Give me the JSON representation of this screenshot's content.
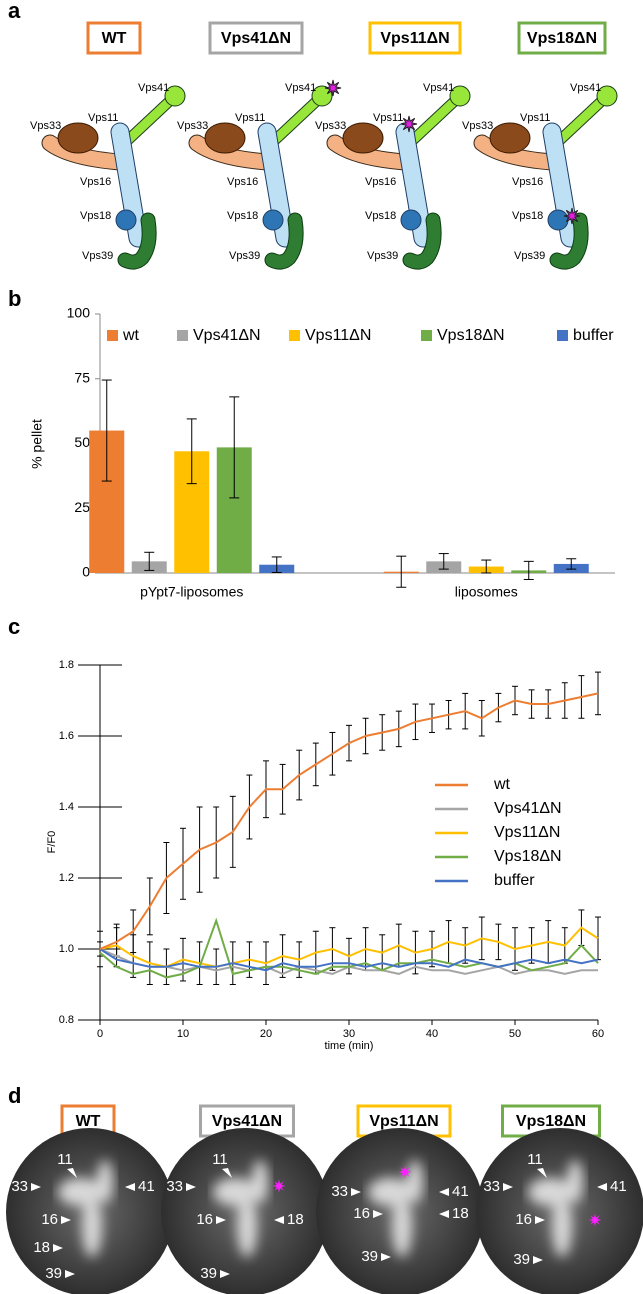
{
  "panel_labels": [
    "a",
    "b",
    "c",
    "d"
  ],
  "diagrams": {
    "titles": [
      "WT",
      "Vps41ΔN",
      "Vps11ΔN",
      "Vps18ΔN"
    ],
    "subunits": [
      "Vps41",
      "Vps11",
      "Vps33",
      "Vps16",
      "Vps18",
      "Vps39"
    ]
  },
  "images": [
    {
      "title": "WT",
      "markers": [
        "11",
        "33",
        "41",
        "16",
        "18",
        "39"
      ]
    },
    {
      "title": "Vps41ΔN",
      "markers": [
        "11",
        "33",
        "16",
        "18",
        "39"
      ]
    },
    {
      "title": "Vps11ΔN",
      "markers": [
        "33",
        "41",
        "16",
        "18",
        "39"
      ]
    },
    {
      "title": "Vps18ΔN",
      "markers": [
        "11",
        "33",
        "41",
        "16",
        "39"
      ]
    }
  ],
  "chart_data": [
    {
      "type": "bar",
      "ylabel": "% pellet",
      "categories": [
        "pYpt7-liposomes",
        "liposomes"
      ],
      "ylim": [
        0,
        100
      ],
      "yticks": [
        0,
        25,
        50,
        75,
        100
      ],
      "series": [
        {
          "name": "wt",
          "color": "#ed7d31",
          "values": [
            55,
            0.5
          ],
          "errors": [
            19.5,
            6
          ]
        },
        {
          "name": "Vps41ΔN",
          "color": "#a5a5a5",
          "values": [
            4.5,
            4.5
          ],
          "errors": [
            3.5,
            3
          ]
        },
        {
          "name": "Vps11ΔN",
          "color": "#ffc000",
          "values": [
            47,
            2.5
          ],
          "errors": [
            12.5,
            2.5
          ]
        },
        {
          "name": "Vps18ΔN",
          "color": "#70ad47",
          "values": [
            48.5,
            1
          ],
          "errors": [
            19.5,
            3.5
          ]
        },
        {
          "name": "buffer",
          "color": "#4472c4",
          "values": [
            3.2,
            3.5
          ],
          "errors": [
            3,
            2
          ]
        }
      ]
    },
    {
      "type": "line",
      "xlabel": "time (min)",
      "ylabel": "F/F0",
      "x": [
        0,
        2,
        4,
        6,
        8,
        10,
        12,
        14,
        16,
        18,
        20,
        22,
        24,
        26,
        28,
        30,
        32,
        34,
        36,
        38,
        40,
        42,
        44,
        46,
        48,
        50,
        52,
        54,
        56,
        58,
        60
      ],
      "xlim": [
        0,
        60
      ],
      "xticks": [
        0,
        10,
        20,
        30,
        40,
        50,
        60
      ],
      "ylim": [
        0.8,
        1.8
      ],
      "yticks": [
        {
          "value": 0.8,
          "label": "0.8"
        },
        {
          "value": 1.0,
          "label": "1.0"
        },
        1.2,
        1.4,
        1.6,
        1.8
      ],
      "series": [
        {
          "name": "wt",
          "color": "#ed7d31",
          "values": [
            1.0,
            1.02,
            1.05,
            1.12,
            1.2,
            1.24,
            1.28,
            1.3,
            1.33,
            1.4,
            1.45,
            1.45,
            1.49,
            1.52,
            1.55,
            1.58,
            1.6,
            1.61,
            1.62,
            1.64,
            1.65,
            1.66,
            1.67,
            1.65,
            1.68,
            1.7,
            1.69,
            1.69,
            1.7,
            1.71,
            1.72
          ],
          "errors": [
            0.02,
            0.04,
            0.06,
            0.08,
            0.1,
            0.1,
            0.12,
            0.1,
            0.1,
            0.09,
            0.08,
            0.07,
            0.07,
            0.06,
            0.06,
            0.05,
            0.05,
            0.05,
            0.05,
            0.05,
            0.04,
            0.04,
            0.05,
            0.05,
            0.04,
            0.04,
            0.04,
            0.04,
            0.05,
            0.06,
            0.06
          ]
        },
        {
          "name": "Vps41ΔN",
          "color": "#a5a5a5",
          "values": [
            1.0,
            0.98,
            0.96,
            0.95,
            0.95,
            0.94,
            0.95,
            0.94,
            0.95,
            0.94,
            0.95,
            0.93,
            0.95,
            0.94,
            0.93,
            0.95,
            0.94,
            0.94,
            0.93,
            0.95,
            0.94,
            0.94,
            0.93,
            0.94,
            0.95,
            0.93,
            0.94,
            0.94,
            0.93,
            0.94,
            0.94
          ]
        },
        {
          "name": "Vps11ΔN",
          "color": "#ffc000",
          "values": [
            1.0,
            1.01,
            0.98,
            0.96,
            0.95,
            0.97,
            0.96,
            0.95,
            0.96,
            0.97,
            0.96,
            0.98,
            0.97,
            0.99,
            1.0,
            0.98,
            1.0,
            0.99,
            1.01,
            0.99,
            1.0,
            1.02,
            1.01,
            1.03,
            1.02,
            1.0,
            1.01,
            1.02,
            1.01,
            1.06,
            1.03
          ],
          "errors": [
            0.05,
            0.06,
            0.06,
            0.06,
            0.05,
            0.06,
            0.06,
            0.05,
            0.06,
            0.05,
            0.06,
            0.06,
            0.05,
            0.06,
            0.06,
            0.05,
            0.06,
            0.05,
            0.06,
            0.06,
            0.05,
            0.06,
            0.05,
            0.06,
            0.05,
            0.06,
            0.05,
            0.06,
            0.05,
            0.05,
            0.06
          ]
        },
        {
          "name": "Vps18ΔN",
          "color": "#70ad47",
          "values": [
            0.99,
            0.95,
            0.93,
            0.94,
            0.92,
            0.93,
            0.95,
            1.08,
            0.93,
            0.94,
            0.95,
            0.95,
            0.94,
            0.93,
            0.95,
            0.95,
            0.96,
            0.94,
            0.96,
            0.96,
            0.97,
            0.96,
            0.95,
            0.96,
            0.95,
            0.96,
            0.94,
            0.95,
            0.96,
            1.01,
            0.96
          ]
        },
        {
          "name": "buffer",
          "color": "#4472c4",
          "values": [
            1.0,
            0.97,
            0.96,
            0.95,
            0.95,
            0.96,
            0.95,
            0.95,
            0.96,
            0.95,
            0.94,
            0.96,
            0.95,
            0.95,
            0.96,
            0.96,
            0.95,
            0.96,
            0.95,
            0.96,
            0.96,
            0.95,
            0.97,
            0.96,
            0.95,
            0.96,
            0.97,
            0.96,
            0.97,
            0.96,
            0.97
          ]
        }
      ]
    }
  ]
}
